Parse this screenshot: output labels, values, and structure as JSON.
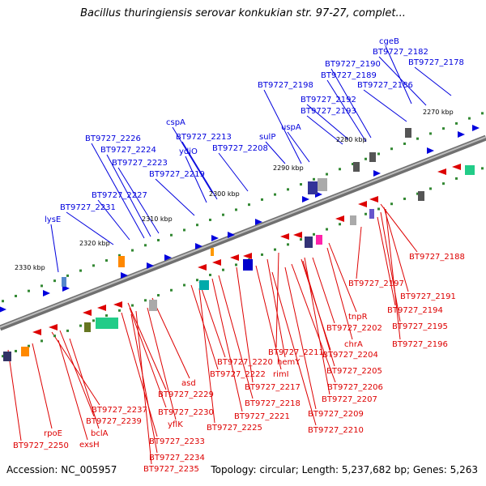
{
  "title": "Bacillus thuringiensis serovar konkukian str. 97-27, complet...",
  "footer": {
    "accession": "Accession: NC_005957",
    "topology": "Topology: circular; Length: 5,237,682 bp; Genes: 5,263"
  },
  "colors": {
    "forward_strand": "#0000dd",
    "reverse_strand": "#dd0000",
    "backbone": "#808080",
    "tick": "#338833"
  },
  "kbp_ticks": [
    "2270 kbp",
    "2280 kbp",
    "2290 kbp",
    "2300 kbp",
    "2310 kbp",
    "2320 kbp",
    "2330 kbp"
  ],
  "forward_labels": [
    "cgeB",
    "BT9727_2182",
    "BT9727_2178",
    "BT9727_2190",
    "BT9727_2189",
    "BT9727_2186",
    "BT9727_2198",
    "BT9727_2192",
    "BT9727_2193",
    "cspA",
    "uspA",
    "BT9727_2213",
    "sulP",
    "BT9727_2226",
    "ydjO",
    "BT9727_2208",
    "BT9727_2224",
    "BT9727_2223",
    "BT9727_2219",
    "BT9727_2227",
    "BT9727_2231",
    "lysE"
  ],
  "reverse_labels": [
    "BT9727_2188",
    "BT9727_2197",
    "BT9727_2191",
    "tnpR",
    "BT9727_2194",
    "BT9727_2195",
    "BT9727_2202",
    "BT9727_2196",
    "BT9727_2211",
    "chrA",
    "BT9727_2204",
    "BT9727_2220",
    "hemY",
    "BT9727_2205",
    "BT9727_2222",
    "rimI",
    "BT9727_2206",
    "asd",
    "BT9727_2217",
    "BT9727_2207",
    "BT9727_2229",
    "BT9727_2218",
    "BT9727_2237",
    "BT9727_2230",
    "BT9727_2209",
    "BT9727_2239",
    "BT9727_2221",
    "yflK",
    "BT9727_2210",
    "BT9727_2225",
    "rpoE",
    "bclA",
    "BT9727_2233",
    "BT9727_2250",
    "exsH",
    "BT9727_2234",
    "BT9727_2235"
  ]
}
